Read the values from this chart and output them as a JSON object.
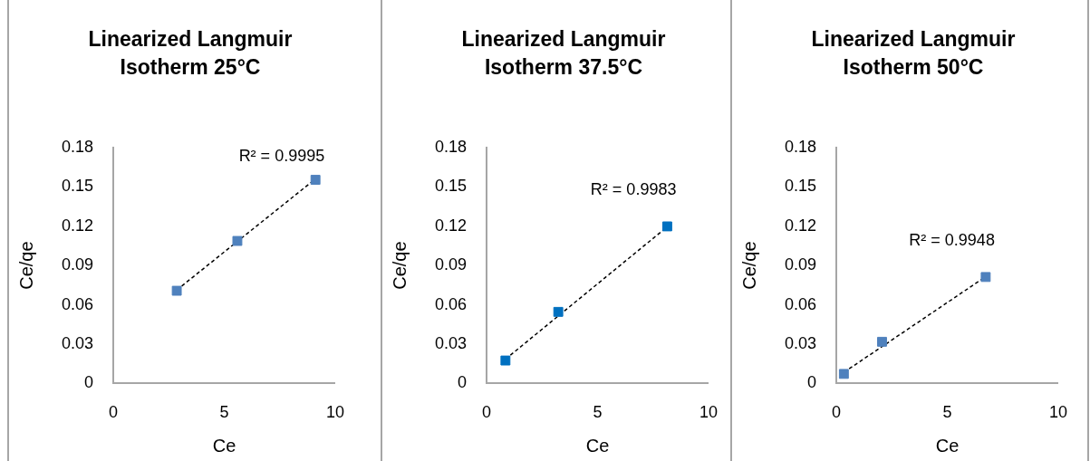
{
  "chart_data": [
    {
      "type": "scatter",
      "title": "Linearized Langmuir Isotherm 25°C",
      "xlabel": "Ce",
      "ylabel": "Ce/qe",
      "xlim": [
        0,
        10
      ],
      "xticks": [
        0,
        5,
        10
      ],
      "ylim": [
        0,
        0.18
      ],
      "yticks": [
        0,
        0.03,
        0.06,
        0.09,
        0.12,
        0.15,
        0.18
      ],
      "grid": false,
      "legend": false,
      "marker": "square",
      "series": [
        {
          "type": "scatter",
          "color": "#4f81bd",
          "x": [
            2.86,
            5.59,
            9.11
          ],
          "values": [
            0.0707,
            0.1087,
            0.1553
          ]
        },
        {
          "type": "line",
          "color": "#000000",
          "line_style": "dashed",
          "marker": "none",
          "x": [
            2.86,
            9.11
          ],
          "values": [
            0.0713,
            0.156
          ]
        }
      ],
      "annotations": [
        "R² = 0.9995"
      ]
    },
    {
      "type": "scatter",
      "title": "Linearized Langmuir Isotherm 37.5°C",
      "xlabel": "Ce",
      "ylabel": "Ce/qe",
      "xlim": [
        0,
        10
      ],
      "xticks": [
        0,
        5,
        10
      ],
      "ylim": [
        0,
        0.18
      ],
      "yticks": [
        0,
        0.03,
        0.06,
        0.09,
        0.12,
        0.15,
        0.18
      ],
      "grid": false,
      "legend": false,
      "marker": "square",
      "series": [
        {
          "type": "scatter",
          "color": "#0070c0",
          "x": [
            0.85,
            3.23,
            8.14
          ],
          "values": [
            0.0175,
            0.0546,
            0.1198
          ]
        },
        {
          "type": "line",
          "color": "#000000",
          "line_style": "dashed",
          "marker": "none",
          "x": [
            0.85,
            8.14
          ],
          "values": [
            0.0185,
            0.1195
          ]
        }
      ],
      "annotations": [
        "R² = 0.9983"
      ]
    },
    {
      "type": "scatter",
      "title": "Linearized Langmuir Isotherm 50°C",
      "xlabel": "Ce",
      "ylabel": "Ce/qe",
      "xlim": [
        0,
        10
      ],
      "xticks": [
        0,
        5,
        10
      ],
      "ylim": [
        0,
        0.18
      ],
      "yticks": [
        0,
        0.03,
        0.06,
        0.09,
        0.12,
        0.15,
        0.18
      ],
      "grid": false,
      "legend": false,
      "marker": "square",
      "series": [
        {
          "type": "scatter",
          "color": "#4f81bd",
          "x": [
            0.34,
            2.06,
            6.73
          ],
          "values": [
            0.0073,
            0.0318,
            0.0812
          ]
        },
        {
          "type": "line",
          "color": "#000000",
          "line_style": "dashed",
          "marker": "none",
          "x": [
            0.34,
            6.73
          ],
          "values": [
            0.0085,
            0.0815
          ]
        }
      ],
      "annotations": [
        "R² = 0.9948"
      ]
    }
  ]
}
